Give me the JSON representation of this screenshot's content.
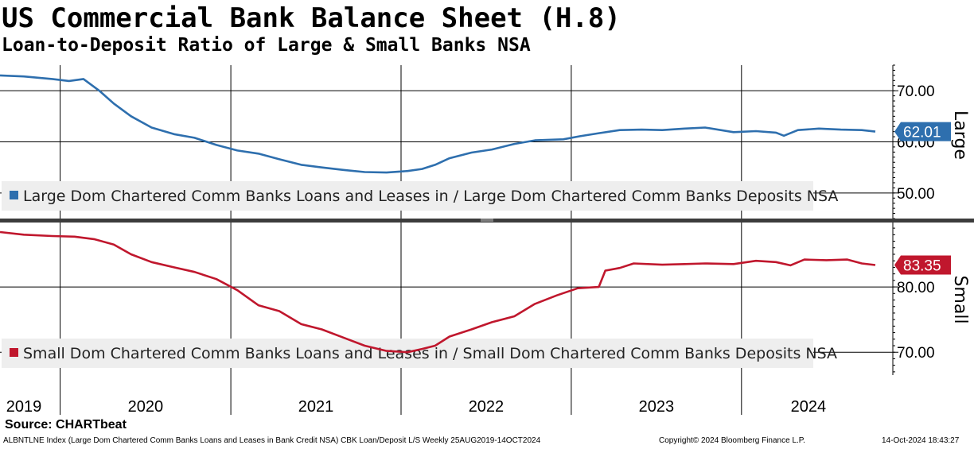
{
  "header": {
    "title": "US Commercial Bank Balance Sheet (H.8)",
    "subtitle": "Loan-to-Deposit Ratio of Large & Small Banks NSA"
  },
  "source": "Source: CHARTbeat",
  "footer": {
    "left": "ALBNTLNE Index (Large Dom Chartered Comm Banks Loans and Leases in Bank Credit NSA) CBK Loan/Deposit L/S  Weekly 25AUG2019-14OCT2024",
    "center": "Copyright© 2024 Bloomberg Finance L.P.",
    "right": "14-Oct-2024 18:43:27"
  },
  "colors": {
    "large": "#2e6fae",
    "small": "#c0172d",
    "legend_bg": "#eeeeee"
  },
  "chart_data": [
    {
      "type": "line",
      "panel": "Large",
      "x_range": [
        "2019-08-25",
        "2024-10-14"
      ],
      "ylim": [
        45,
        75
      ],
      "y_ticks": [
        "50.00",
        "60.00",
        "70.00"
      ],
      "y_tick_values": [
        50,
        60,
        70
      ],
      "grid": true,
      "legend_placement": "bottom-left",
      "series": [
        {
          "name": "Large Dom Chartered Comm Banks Loans and Leases in / Large Dom Chartered Comm Banks Deposits NSA",
          "last_value": "62.01",
          "points": [
            [
              "2019-08-25",
              73.0
            ],
            [
              "2019-10-15",
              72.8
            ],
            [
              "2019-12-15",
              72.3
            ],
            [
              "2020-01-20",
              71.9
            ],
            [
              "2020-02-20",
              72.3
            ],
            [
              "2020-03-25",
              70.0
            ],
            [
              "2020-04-25",
              67.5
            ],
            [
              "2020-06-01",
              65.0
            ],
            [
              "2020-07-15",
              62.8
            ],
            [
              "2020-09-01",
              61.5
            ],
            [
              "2020-10-15",
              60.8
            ],
            [
              "2020-12-01",
              59.4
            ],
            [
              "2021-01-15",
              58.3
            ],
            [
              "2021-03-01",
              57.7
            ],
            [
              "2021-04-15",
              56.6
            ],
            [
              "2021-06-01",
              55.5
            ],
            [
              "2021-07-15",
              55.0
            ],
            [
              "2021-09-01",
              54.5
            ],
            [
              "2021-10-15",
              54.1
            ],
            [
              "2021-12-01",
              54.0
            ],
            [
              "2022-01-15",
              54.3
            ],
            [
              "2022-02-15",
              54.7
            ],
            [
              "2022-03-15",
              55.5
            ],
            [
              "2022-04-15",
              56.8
            ],
            [
              "2022-06-01",
              57.9
            ],
            [
              "2022-07-15",
              58.5
            ],
            [
              "2022-09-01",
              59.6
            ],
            [
              "2022-10-15",
              60.3
            ],
            [
              "2022-12-15",
              60.5
            ],
            [
              "2023-01-20",
              61.1
            ],
            [
              "2023-03-01",
              61.7
            ],
            [
              "2023-04-15",
              62.3
            ],
            [
              "2023-06-01",
              62.4
            ],
            [
              "2023-07-15",
              62.3
            ],
            [
              "2023-09-01",
              62.6
            ],
            [
              "2023-10-15",
              62.8
            ],
            [
              "2023-12-15",
              61.9
            ],
            [
              "2024-02-01",
              62.1
            ],
            [
              "2024-03-15",
              61.8
            ],
            [
              "2024-04-01",
              61.2
            ],
            [
              "2024-05-01",
              62.3
            ],
            [
              "2024-06-15",
              62.6
            ],
            [
              "2024-08-01",
              62.4
            ],
            [
              "2024-09-15",
              62.3
            ],
            [
              "2024-10-14",
              62.01
            ]
          ]
        }
      ]
    },
    {
      "type": "line",
      "panel": "Small",
      "x_range": [
        "2019-08-25",
        "2024-10-14"
      ],
      "ylim": [
        66.5,
        89.5
      ],
      "y_ticks": [
        "70.00",
        "80.00"
      ],
      "y_tick_values": [
        70,
        80
      ],
      "grid": true,
      "legend_placement": "bottom-left",
      "series": [
        {
          "name": "Small Dom Chartered Comm Banks Loans and Leases in / Small Dom Chartered Comm Banks Deposits NSA",
          "last_value": "83.35",
          "points": [
            [
              "2019-08-25",
              88.4
            ],
            [
              "2019-10-15",
              88.0
            ],
            [
              "2019-12-15",
              87.8
            ],
            [
              "2020-02-01",
              87.7
            ],
            [
              "2020-03-15",
              87.3
            ],
            [
              "2020-04-25",
              86.5
            ],
            [
              "2020-06-01",
              85.0
            ],
            [
              "2020-07-15",
              83.8
            ],
            [
              "2020-09-01",
              83.0
            ],
            [
              "2020-10-15",
              82.3
            ],
            [
              "2020-12-01",
              81.2
            ],
            [
              "2021-01-15",
              79.5
            ],
            [
              "2021-03-01",
              77.2
            ],
            [
              "2021-04-15",
              76.3
            ],
            [
              "2021-06-01",
              74.3
            ],
            [
              "2021-07-15",
              73.5
            ],
            [
              "2021-09-01",
              72.2
            ],
            [
              "2021-10-15",
              71.0
            ],
            [
              "2021-12-01",
              70.2
            ],
            [
              "2022-01-15",
              70.0
            ],
            [
              "2022-02-15",
              70.5
            ],
            [
              "2022-03-15",
              71.0
            ],
            [
              "2022-04-15",
              72.4
            ],
            [
              "2022-06-01",
              73.5
            ],
            [
              "2022-07-15",
              74.6
            ],
            [
              "2022-09-01",
              75.5
            ],
            [
              "2022-10-15",
              77.4
            ],
            [
              "2022-12-01",
              78.7
            ],
            [
              "2023-01-15",
              79.8
            ],
            [
              "2023-03-01",
              80.0
            ],
            [
              "2023-03-15",
              82.5
            ],
            [
              "2023-04-15",
              82.9
            ],
            [
              "2023-05-15",
              83.6
            ],
            [
              "2023-07-15",
              83.4
            ],
            [
              "2023-09-01",
              83.5
            ],
            [
              "2023-10-15",
              83.6
            ],
            [
              "2023-12-15",
              83.5
            ],
            [
              "2024-02-01",
              84.0
            ],
            [
              "2024-03-15",
              83.8
            ],
            [
              "2024-04-15",
              83.3
            ],
            [
              "2024-05-15",
              84.2
            ],
            [
              "2024-07-01",
              84.1
            ],
            [
              "2024-08-15",
              84.2
            ],
            [
              "2024-09-15",
              83.6
            ],
            [
              "2024-10-14",
              83.35
            ]
          ]
        }
      ]
    }
  ],
  "x_axis": {
    "year_labels": [
      "2019",
      "2020",
      "2021",
      "2022",
      "2023",
      "2024"
    ],
    "year_starts": [
      "2020-01-01",
      "2021-01-01",
      "2022-01-01",
      "2023-01-01",
      "2024-01-01"
    ]
  }
}
